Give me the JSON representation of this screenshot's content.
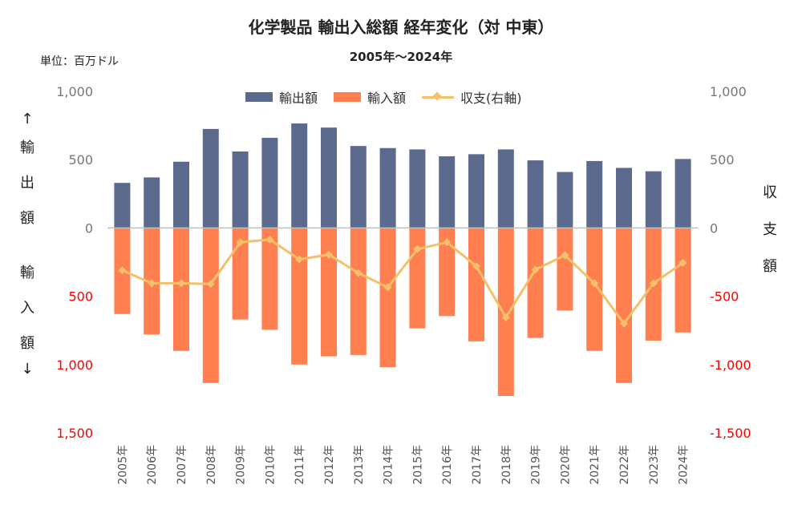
{
  "chart_data": {
    "type": "bar",
    "title": "化学製品 輸出入総額 経年変化（対 中東）",
    "subtitle": "2005年～2024年",
    "unit_label": "単位：百万ドル",
    "left_axis_label": [
      "↑",
      "輸",
      "出",
      "額",
      "",
      "輸",
      "入",
      "額",
      "↓"
    ],
    "right_axis_label": [
      "収",
      "支",
      "額"
    ],
    "categories": [
      "2005年",
      "2006年",
      "2007年",
      "2008年",
      "2009年",
      "2010年",
      "2011年",
      "2012年",
      "2013年",
      "2014年",
      "2015年",
      "2016年",
      "2017年",
      "2018年",
      "2019年",
      "2020年",
      "2021年",
      "2022年",
      "2023年",
      "2024年"
    ],
    "series": [
      {
        "name": "輸出額",
        "type": "bar",
        "axis": "left",
        "color": "#5B6A8C",
        "values": [
          330,
          370,
          485,
          725,
          560,
          660,
          765,
          735,
          600,
          585,
          575,
          525,
          540,
          575,
          495,
          410,
          490,
          440,
          415,
          505
        ]
      },
      {
        "name": "輸入額",
        "type": "bar",
        "axis": "left",
        "color": "#FF7F50",
        "values": [
          630,
          780,
          900,
          1135,
          670,
          745,
          1000,
          940,
          930,
          1020,
          735,
          645,
          830,
          1230,
          805,
          605,
          900,
          1135,
          825,
          765
        ]
      },
      {
        "name": "収支(右軸)",
        "type": "line",
        "axis": "right",
        "color": "#F5C06A",
        "values": [
          -310,
          -405,
          -405,
          -410,
          -105,
          -85,
          -230,
          -195,
          -330,
          -435,
          -155,
          -105,
          -280,
          -655,
          -305,
          -200,
          -405,
          -700,
          -405,
          -255
        ]
      }
    ],
    "left_axis": {
      "range": [
        -1500,
        1000
      ],
      "ticks": [
        1000,
        500,
        0,
        -500,
        -1000,
        -1500
      ],
      "tick_labels": [
        "1,000",
        "500",
        "0",
        "500",
        "1,000",
        "1,500"
      ]
    },
    "right_axis": {
      "range": [
        -1500,
        1000
      ],
      "ticks": [
        1000,
        500,
        0,
        -500,
        -1000,
        -1500
      ],
      "tick_labels": [
        "1,000",
        "500",
        "0",
        "-500",
        "-1,000",
        "-1,500"
      ]
    },
    "colors": {
      "negative_tick": "#FF0000",
      "positive_tick": "#777777",
      "zero_line": "#BFBFBF"
    },
    "legend_position": "top",
    "grid": false
  }
}
